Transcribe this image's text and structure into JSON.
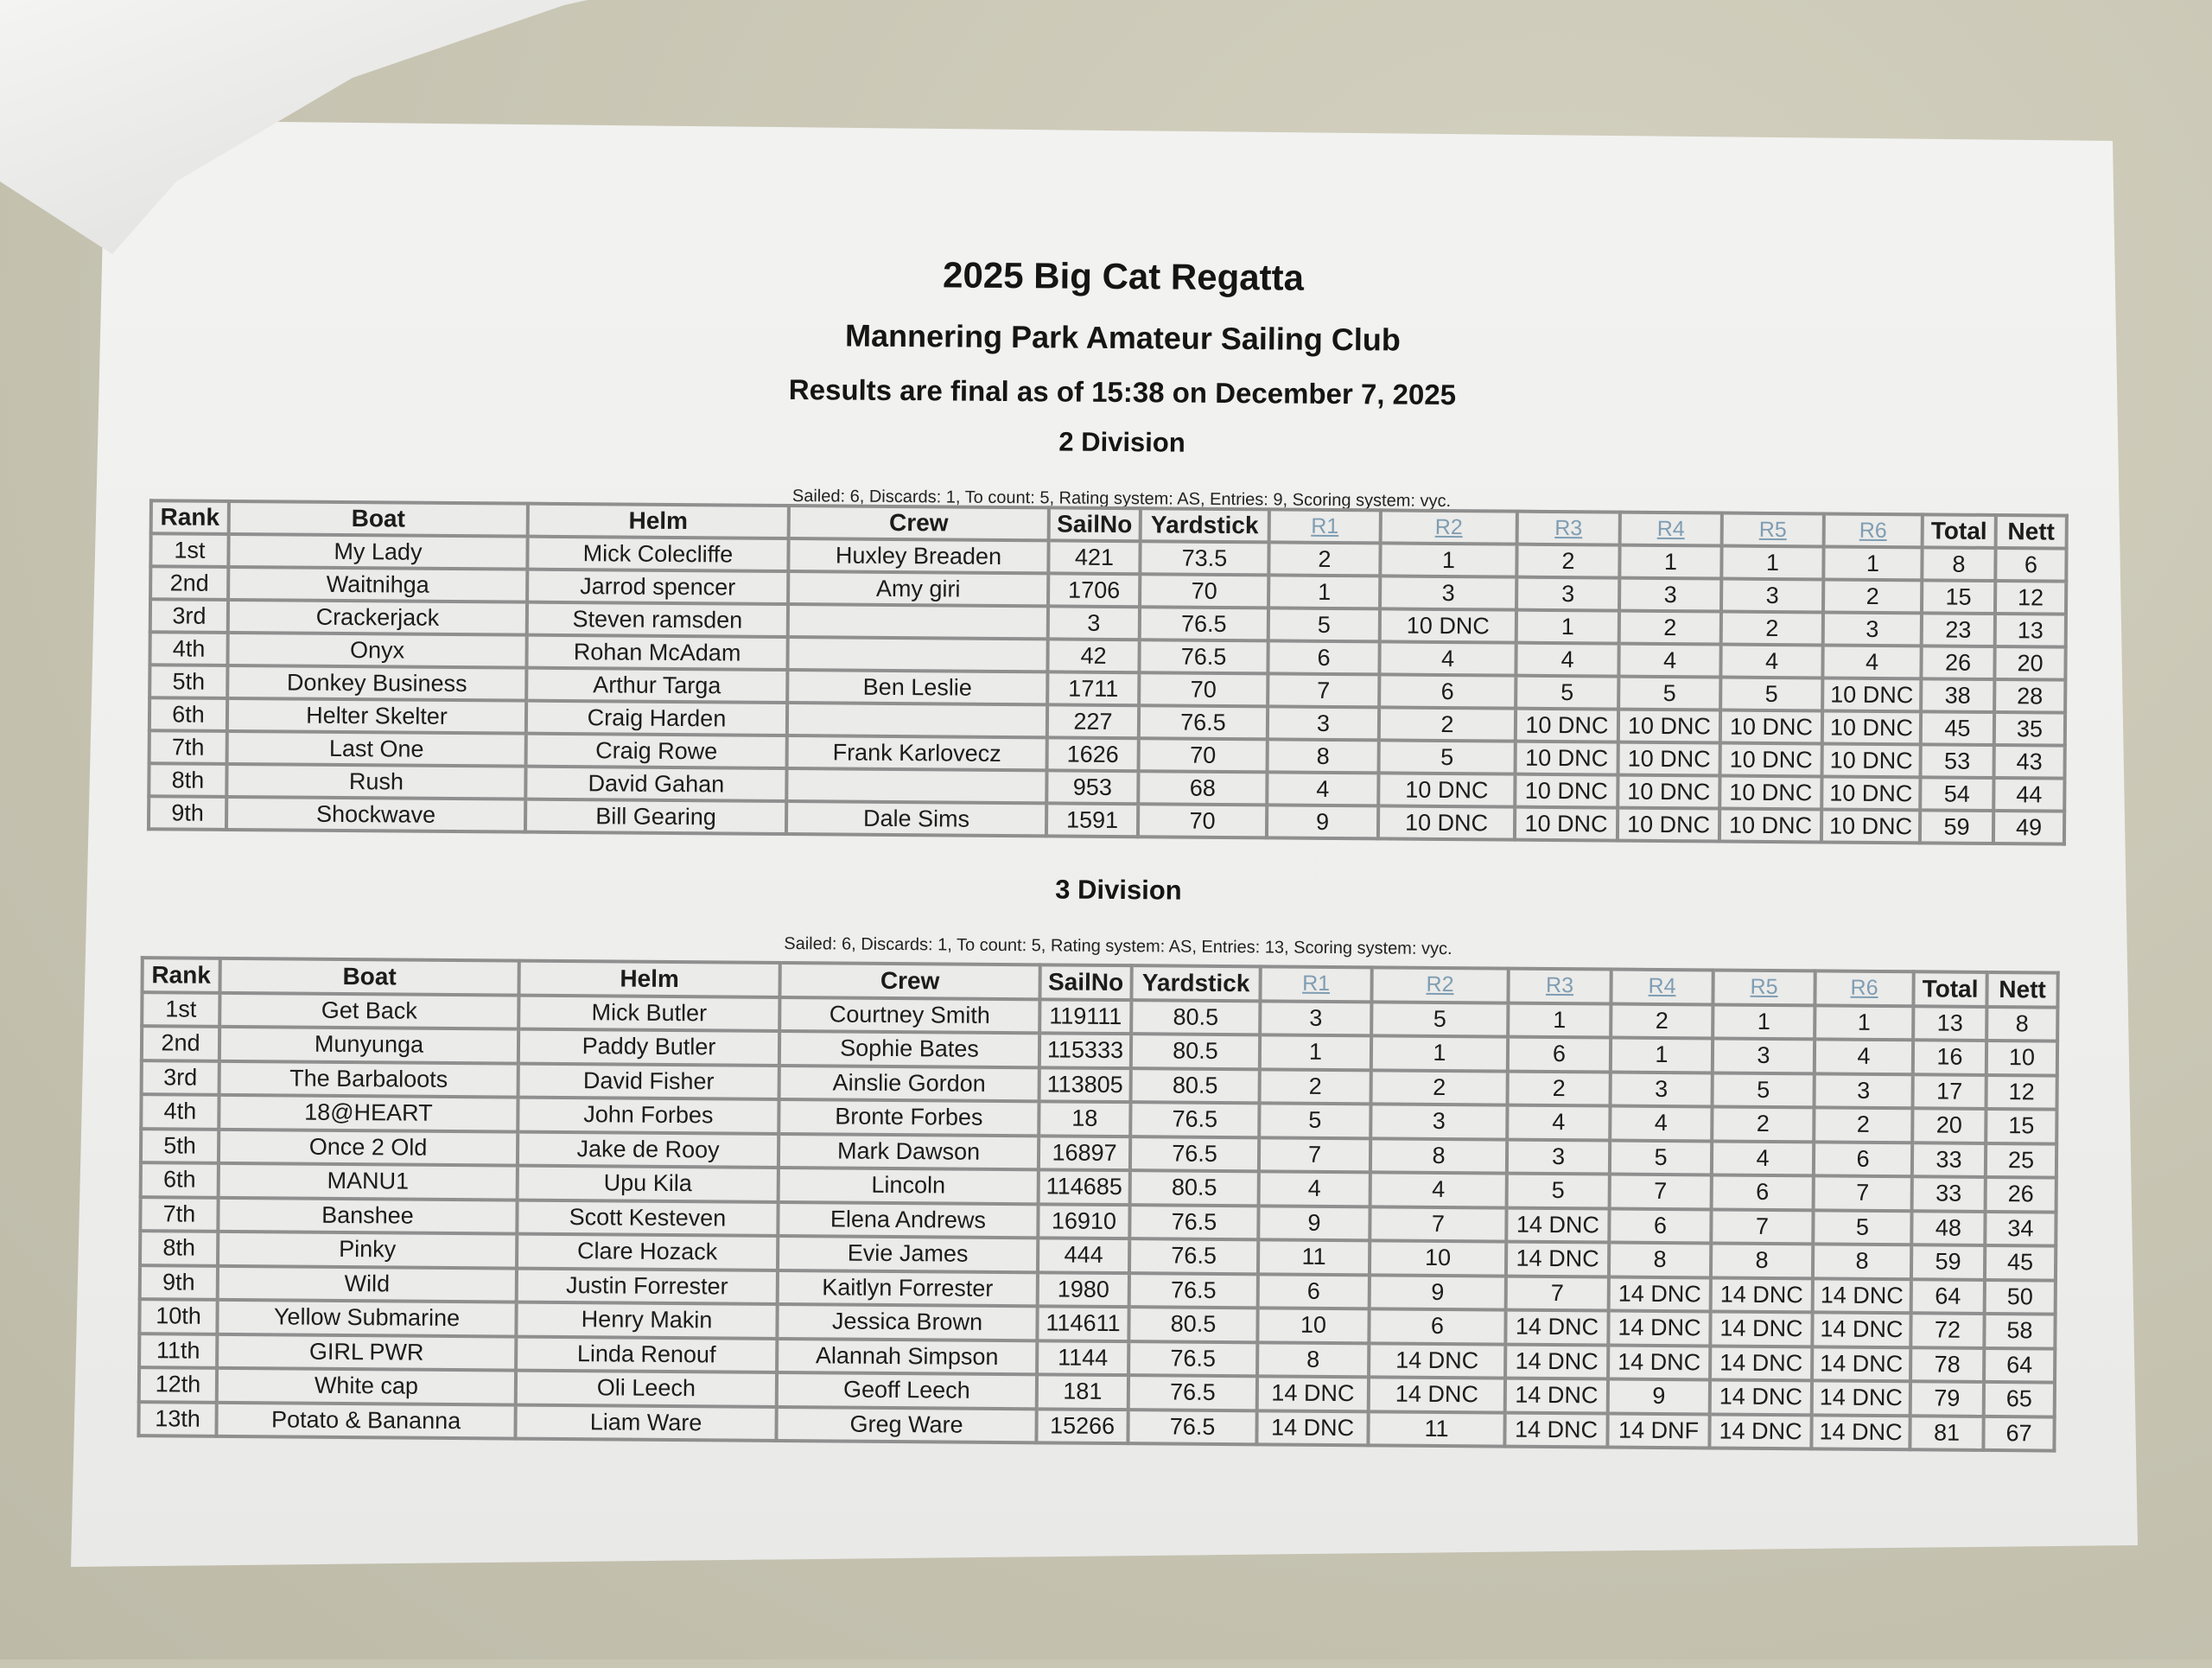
{
  "title": "2025 Big Cat Regatta",
  "club": "Mannering Park Amateur Sailing Club",
  "status": "Results are final as of 15:38 on December 7, 2025",
  "colors": {
    "race_header": "#7f9db3",
    "border": "#8f8f8f",
    "paper": "#eeeeec",
    "background": "#c8c5b3"
  },
  "columns": [
    "Rank",
    "Boat",
    "Helm",
    "Crew",
    "SailNo",
    "Yardstick",
    "R1",
    "R2",
    "R3",
    "R4",
    "R5",
    "R6",
    "Total",
    "Nett"
  ],
  "divisions": [
    {
      "name": "2 Division",
      "info": "Sailed: 6, Discards: 1, To count: 5, Rating system: AS, Entries: 9, Scoring system: vyc.",
      "rows": [
        [
          "1st",
          "My Lady",
          "Mick Colecliffe",
          "Huxley Breaden",
          "421",
          "73.5",
          "2",
          "1",
          "2",
          "1",
          "1",
          "1",
          "8",
          "6"
        ],
        [
          "2nd",
          "Waitnihga",
          "Jarrod spencer",
          "Amy giri",
          "1706",
          "70",
          "1",
          "3",
          "3",
          "3",
          "3",
          "2",
          "15",
          "12"
        ],
        [
          "3rd",
          "Crackerjack",
          "Steven ramsden",
          "",
          "3",
          "76.5",
          "5",
          "10 DNC",
          "1",
          "2",
          "2",
          "3",
          "23",
          "13"
        ],
        [
          "4th",
          "Onyx",
          "Rohan McAdam",
          "",
          "42",
          "76.5",
          "6",
          "4",
          "4",
          "4",
          "4",
          "4",
          "26",
          "20"
        ],
        [
          "5th",
          "Donkey Business",
          "Arthur Targa",
          "Ben Leslie",
          "1711",
          "70",
          "7",
          "6",
          "5",
          "5",
          "5",
          "10 DNC",
          "38",
          "28"
        ],
        [
          "6th",
          "Helter Skelter",
          "Craig Harden",
          "",
          "227",
          "76.5",
          "3",
          "2",
          "10 DNC",
          "10 DNC",
          "10 DNC",
          "10 DNC",
          "45",
          "35"
        ],
        [
          "7th",
          "Last One",
          "Craig Rowe",
          "Frank Karlovecz",
          "1626",
          "70",
          "8",
          "5",
          "10 DNC",
          "10 DNC",
          "10 DNC",
          "10 DNC",
          "53",
          "43"
        ],
        [
          "8th",
          "Rush",
          "David Gahan",
          "",
          "953",
          "68",
          "4",
          "10 DNC",
          "10 DNC",
          "10 DNC",
          "10 DNC",
          "10 DNC",
          "54",
          "44"
        ],
        [
          "9th",
          "Shockwave",
          "Bill Gearing",
          "Dale Sims",
          "1591",
          "70",
          "9",
          "10 DNC",
          "10 DNC",
          "10 DNC",
          "10 DNC",
          "10 DNC",
          "59",
          "49"
        ]
      ]
    },
    {
      "name": "3 Division",
      "info": "Sailed: 6, Discards: 1, To count: 5, Rating system: AS, Entries: 13, Scoring system: vyc.",
      "rows": [
        [
          "1st",
          "Get Back",
          "Mick Butler",
          "Courtney Smith",
          "119111",
          "80.5",
          "3",
          "5",
          "1",
          "2",
          "1",
          "1",
          "13",
          "8"
        ],
        [
          "2nd",
          "Munyunga",
          "Paddy Butler",
          "Sophie Bates",
          "115333",
          "80.5",
          "1",
          "1",
          "6",
          "1",
          "3",
          "4",
          "16",
          "10"
        ],
        [
          "3rd",
          "The Barbaloots",
          "David Fisher",
          "Ainslie Gordon",
          "113805",
          "80.5",
          "2",
          "2",
          "2",
          "3",
          "5",
          "3",
          "17",
          "12"
        ],
        [
          "4th",
          "18@HEART",
          "John Forbes",
          "Bronte Forbes",
          "18",
          "76.5",
          "5",
          "3",
          "4",
          "4",
          "2",
          "2",
          "20",
          "15"
        ],
        [
          "5th",
          "Once 2 Old",
          "Jake de Rooy",
          "Mark Dawson",
          "16897",
          "76.5",
          "7",
          "8",
          "3",
          "5",
          "4",
          "6",
          "33",
          "25"
        ],
        [
          "6th",
          "MANU1",
          "Upu Kila",
          "Lincoln",
          "114685",
          "80.5",
          "4",
          "4",
          "5",
          "7",
          "6",
          "7",
          "33",
          "26"
        ],
        [
          "7th",
          "Banshee",
          "Scott Kesteven",
          "Elena Andrews",
          "16910",
          "76.5",
          "9",
          "7",
          "14 DNC",
          "6",
          "7",
          "5",
          "48",
          "34"
        ],
        [
          "8th",
          "Pinky",
          "Clare Hozack",
          "Evie James",
          "444",
          "76.5",
          "11",
          "10",
          "14 DNC",
          "8",
          "8",
          "8",
          "59",
          "45"
        ],
        [
          "9th",
          "Wild",
          "Justin Forrester",
          "Kaitlyn Forrester",
          "1980",
          "76.5",
          "6",
          "9",
          "7",
          "14 DNC",
          "14 DNC",
          "14 DNC",
          "64",
          "50"
        ],
        [
          "10th",
          "Yellow Submarine",
          "Henry Makin",
          "Jessica Brown",
          "114611",
          "80.5",
          "10",
          "6",
          "14 DNC",
          "14 DNC",
          "14 DNC",
          "14 DNC",
          "72",
          "58"
        ],
        [
          "11th",
          "GIRL PWR",
          "Linda Renouf",
          "Alannah Simpson",
          "1144",
          "76.5",
          "8",
          "14 DNC",
          "14 DNC",
          "14 DNC",
          "14 DNC",
          "14 DNC",
          "78",
          "64"
        ],
        [
          "12th",
          "White cap",
          "Oli Leech",
          "Geoff Leech",
          "181",
          "76.5",
          "14 DNC",
          "14 DNC",
          "14 DNC",
          "9",
          "14 DNC",
          "14 DNC",
          "79",
          "65"
        ],
        [
          "13th",
          "Potato & Bananna",
          "Liam Ware",
          "Greg Ware",
          "15266",
          "76.5",
          "14 DNC",
          "11",
          "14 DNC",
          "14 DNF",
          "14 DNC",
          "14 DNC",
          "81",
          "67"
        ]
      ]
    }
  ]
}
